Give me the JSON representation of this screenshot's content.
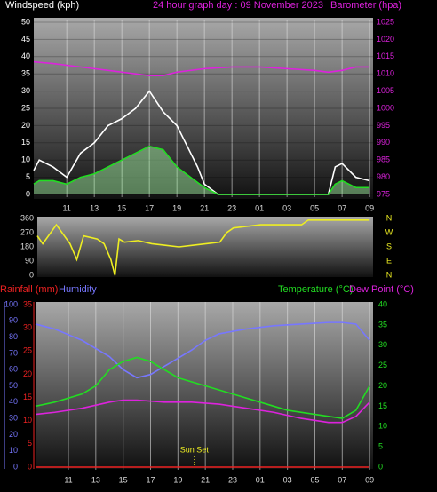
{
  "chart_data": [
    {
      "type": "line",
      "title": "24 hour graph day : 09 November 2023",
      "y_label": "Windspeed (kph)",
      "y2_label": "Barometer (hpa)",
      "xlim": [
        8.6,
        33.25
      ],
      "xticks": [
        11,
        13,
        15,
        17,
        19,
        21,
        23,
        {
          "value": 25,
          "label": "01"
        },
        {
          "value": 27,
          "label": "03"
        },
        {
          "value": 29,
          "label": "05"
        },
        {
          "value": 31,
          "label": "07"
        },
        {
          "value": 33,
          "label": "09"
        }
      ],
      "ylim": [
        0,
        50
      ],
      "yticks": [
        0,
        5,
        10,
        15,
        20,
        25,
        30,
        35,
        40,
        45,
        50
      ],
      "y2lim": [
        975,
        1025
      ],
      "y2ticks": [
        975,
        980,
        985,
        990,
        995,
        1000,
        1005,
        1010,
        1015,
        1020,
        1025
      ],
      "grid": true,
      "series": [
        {
          "color": "#ffffff",
          "x": [
            8.6,
            9,
            10,
            11,
            12,
            13,
            14,
            15,
            16,
            17,
            18,
            19,
            20,
            20.5,
            21,
            22,
            23,
            25,
            27,
            29,
            30,
            30.5,
            31,
            32,
            33
          ],
          "values": [
            7,
            10,
            8,
            5,
            12,
            15,
            20,
            22,
            25,
            30,
            24,
            20,
            12,
            8,
            3,
            0,
            0,
            0,
            0,
            0,
            0,
            8,
            9,
            5,
            4
          ]
        },
        {
          "color": "#22dd22",
          "area": true,
          "x": [
            8.6,
            9,
            10,
            11,
            12,
            13,
            14,
            15,
            16,
            17,
            18,
            19,
            20,
            21,
            22,
            23,
            25,
            27,
            29,
            30,
            30.5,
            31,
            32,
            33
          ],
          "values": [
            3,
            4,
            4,
            3,
            5,
            6,
            8,
            10,
            12,
            14,
            13,
            8,
            5,
            2,
            0,
            0,
            0,
            0,
            0,
            0,
            3,
            4,
            2,
            2
          ]
        },
        {
          "color": "#dd22dd",
          "axis": "y2",
          "x": [
            8.6,
            10,
            11,
            13,
            15,
            17,
            18,
            19,
            21,
            23,
            25,
            27,
            29,
            30,
            31,
            32,
            33
          ],
          "values": [
            1013.5,
            1013,
            1012.5,
            1011.5,
            1010.5,
            1009.5,
            1009.5,
            1010.5,
            1011.5,
            1012,
            1012,
            1011.5,
            1011,
            1010.5,
            1011,
            1012,
            1012
          ]
        }
      ]
    },
    {
      "type": "line",
      "xlim": [
        8.6,
        33.25
      ],
      "ylim": [
        0,
        360
      ],
      "yticks": [
        0,
        90,
        180,
        270,
        360
      ],
      "y2lim": [
        0,
        360
      ],
      "y2ticks": [
        {
          "value": 360,
          "label": "N"
        },
        {
          "value": 270,
          "label": "W"
        },
        {
          "value": 180,
          "label": "S"
        },
        {
          "value": 90,
          "label": "E"
        },
        {
          "value": 0,
          "label": "N"
        }
      ],
      "series": [
        {
          "color": "#eeee22",
          "x": [
            8.6,
            9,
            10,
            11,
            11.5,
            12,
            13,
            13.5,
            14,
            14.3,
            14.6,
            15,
            16,
            17,
            18,
            19,
            20,
            21,
            22,
            22.5,
            23,
            24,
            25,
            28,
            28.5,
            33
          ],
          "values": [
            250,
            200,
            320,
            200,
            100,
            250,
            230,
            200,
            100,
            0,
            230,
            210,
            220,
            200,
            190,
            180,
            190,
            200,
            210,
            270,
            300,
            310,
            320,
            320,
            350,
            350
          ]
        }
      ]
    },
    {
      "type": "line",
      "annotation": {
        "text": "Sun Set",
        "x": 20.2
      },
      "xlim": [
        8.6,
        33.25
      ],
      "xticks": [
        11,
        13,
        15,
        17,
        19,
        21,
        23,
        {
          "value": 25,
          "label": "01"
        },
        {
          "value": 27,
          "label": "03"
        },
        {
          "value": 29,
          "label": "05"
        },
        {
          "value": 31,
          "label": "07"
        },
        {
          "value": 33,
          "label": "09"
        }
      ],
      "ylim": [
        0,
        35
      ],
      "yticks": [
        0,
        5,
        10,
        15,
        20,
        25,
        30,
        35
      ],
      "y3lim": [
        0,
        100
      ],
      "y3ticks": [
        0,
        10,
        20,
        30,
        40,
        50,
        60,
        70,
        80,
        90,
        100
      ],
      "y2lim": [
        0,
        40
      ],
      "y2ticks": [
        0,
        5,
        10,
        15,
        20,
        25,
        30,
        35,
        40
      ],
      "series": [
        {
          "name": "Rainfall (mm)",
          "color": "#ee2222",
          "x": [
            8.6,
            33
          ],
          "values": [
            0,
            0
          ]
        },
        {
          "name": "Humidity",
          "color": "#7777ff",
          "axis": "y3",
          "x": [
            8.6,
            10,
            12,
            13,
            14,
            15,
            16,
            17,
            18,
            19,
            20,
            21,
            22,
            24,
            26,
            28,
            30,
            31,
            32,
            33
          ],
          "values": [
            88,
            85,
            78,
            73,
            68,
            60,
            55,
            57,
            62,
            67,
            72,
            78,
            82,
            85,
            87,
            88,
            89,
            89,
            88,
            78
          ]
        },
        {
          "name": "Temperature (°C)",
          "color": "#22dd22",
          "axis": "y2",
          "x": [
            8.6,
            10,
            12,
            13,
            14,
            15,
            16,
            17,
            18,
            19,
            21,
            23,
            25,
            27,
            29,
            31,
            32,
            33
          ],
          "values": [
            15,
            16,
            18,
            20,
            24,
            26,
            27,
            26,
            24,
            22,
            20,
            18,
            16,
            14,
            13,
            12,
            14,
            20
          ]
        },
        {
          "name": "Dew Point (°C)",
          "color": "#dd22dd",
          "axis": "y2",
          "x": [
            8.6,
            10,
            12,
            14,
            15,
            16,
            18,
            20,
            22,
            24,
            26,
            28,
            30,
            31,
            32,
            33
          ],
          "values": [
            13,
            13.5,
            14.5,
            16,
            16.5,
            16.5,
            16,
            16,
            15.5,
            14.5,
            13.5,
            12,
            11,
            11,
            12.5,
            16
          ]
        }
      ]
    }
  ]
}
